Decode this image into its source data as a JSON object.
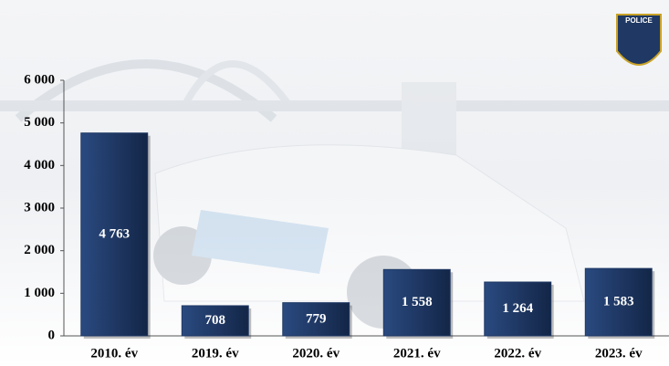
{
  "logo_text": "POLICE",
  "chart_data": {
    "type": "bar",
    "categories": [
      "2010. év",
      "2019. év",
      "2020. év",
      "2021. év",
      "2022. év",
      "2023. év"
    ],
    "values": [
      4763,
      708,
      779,
      1558,
      1264,
      1583
    ],
    "value_labels": [
      "4 763",
      "708",
      "779",
      "1 558",
      "1 264",
      "1 583"
    ],
    "color": "#1f3864",
    "ylim": [
      0,
      6000
    ],
    "yticks": [
      0,
      {
        "value": 1000,
        "label": "1 000"
      },
      {
        "value": 2000,
        "label": "2 000"
      },
      {
        "value": 3000,
        "label": "3 000"
      },
      {
        "value": 4000,
        "label": "4 000"
      },
      {
        "value": 5000,
        "label": "5 000"
      },
      {
        "value": 6000,
        "label": "6 000"
      }
    ],
    "grid": false
  }
}
